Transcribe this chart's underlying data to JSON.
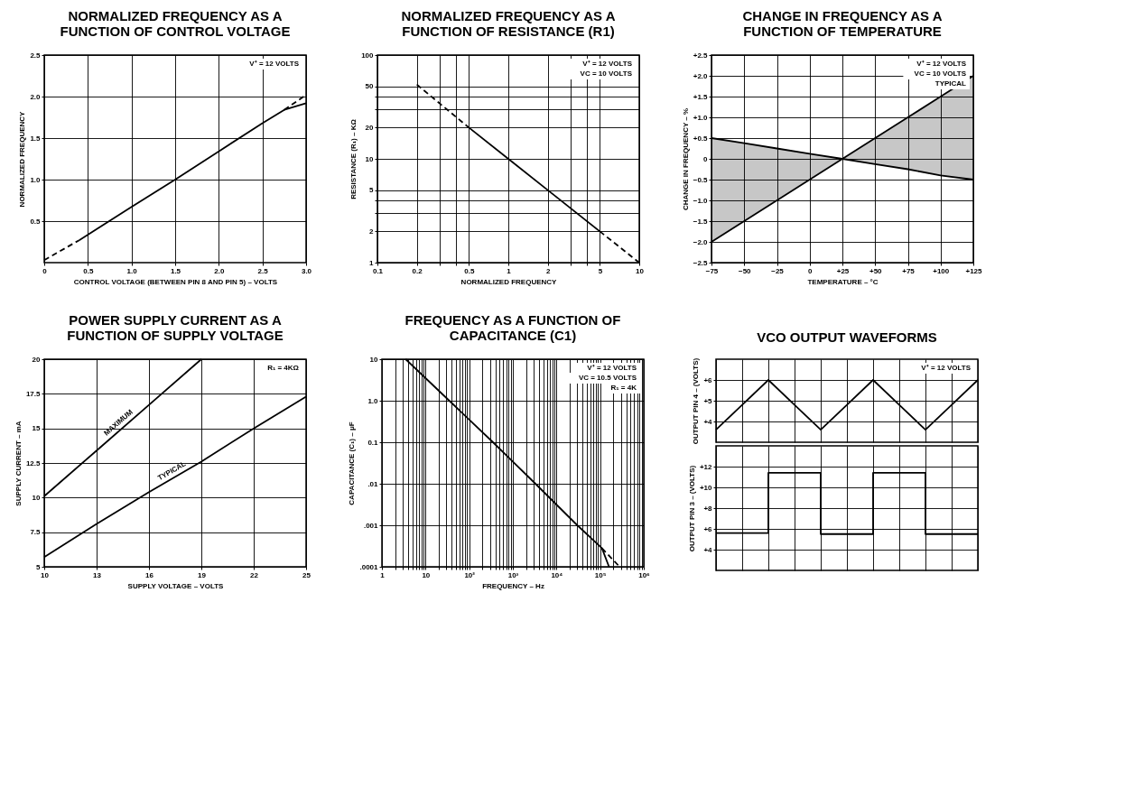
{
  "chart_data": [
    {
      "type": "line",
      "title": "NORMALIZED FREQUENCY AS A FUNCTION OF CONTROL VOLTAGE",
      "xlabel": "CONTROL VOLTAGE (BETWEEN PIN 8 AND PIN 5) – VOLTS",
      "ylabel": "NORMALIZED FREQUENCY",
      "xlim": [
        0,
        3
      ],
      "ylim": [
        0,
        2.5
      ],
      "xticks": [
        0,
        0.5,
        {
          "value": 1,
          "label": "1.0"
        },
        1.5,
        {
          "value": 2,
          "label": "2.0"
        },
        2.5,
        {
          "value": 3,
          "label": "3.0"
        }
      ],
      "yticks": [
        0.5,
        {
          "value": 1,
          "label": "1.0"
        },
        1.5,
        {
          "value": 2,
          "label": "2.0"
        },
        2.5
      ],
      "grid": true,
      "annotations": [
        "V⁺ = 12 VOLTS"
      ],
      "series": [
        {
          "color": "#000000",
          "x": [
            0.4,
            1,
            1.5,
            2,
            2.5,
            2.75,
            3
          ],
          "values": [
            0.27,
            0.67,
            1.0,
            1.34,
            1.68,
            1.84,
            1.92
          ]
        },
        {
          "color": "#000000",
          "line_style": "dashed",
          "x": [
            0,
            0.4
          ],
          "values": [
            0.03,
            0.27
          ]
        },
        {
          "color": "#000000",
          "line_style": "dashed",
          "x": [
            2.75,
            3
          ],
          "values": [
            1.84,
            2.02
          ]
        }
      ]
    },
    {
      "type": "line",
      "title": "NORMALIZED FREQUENCY AS A FUNCTION OF RESISTANCE (R1)",
      "xlabel": "NORMALIZED FREQUENCY",
      "ylabel": "RESISTANCE (R₁) – KΩ",
      "log": "xy",
      "xlim": [
        0.1,
        10
      ],
      "ylim": [
        1,
        100
      ],
      "xticks": [
        0.1,
        0.2,
        {
          "value": 0.3,
          "label": null
        },
        {
          "value": 0.4,
          "label": null
        },
        0.5,
        1,
        2,
        {
          "value": 3,
          "label": null
        },
        {
          "value": 4,
          "label": null
        },
        5,
        10
      ],
      "yticks": [
        1,
        2,
        {
          "value": 3,
          "label": null
        },
        {
          "value": 4,
          "label": null
        },
        5,
        10,
        20,
        {
          "value": 30,
          "label": null
        },
        {
          "value": 40,
          "label": null
        },
        50,
        100
      ],
      "grid": true,
      "annotations": [
        "V⁺ = 12 VOLTS",
        "VC = 10 VOLTS"
      ],
      "series": [
        {
          "color": "#000000",
          "x": [
            0.5,
            1,
            2,
            5
          ],
          "values": [
            20,
            10,
            5,
            2
          ]
        },
        {
          "color": "#000000",
          "line_style": "dashed",
          "x": [
            0.2,
            0.5
          ],
          "values": [
            52,
            20
          ]
        },
        {
          "color": "#000000",
          "line_style": "dashed",
          "x": [
            5,
            10
          ],
          "values": [
            2,
            1
          ]
        }
      ]
    },
    {
      "type": "line",
      "title": "CHANGE IN FREQUENCY AS A FUNCTION OF TEMPERATURE",
      "xlabel": "TEMPERATURE – °C",
      "ylabel": "CHANGE IN FREQUENCY – %",
      "xlim": [
        -75,
        125
      ],
      "ylim": [
        -2.5,
        2.5
      ],
      "xticks": [
        {
          "value": -75,
          "label": "−75"
        },
        {
          "value": -50,
          "label": "−50"
        },
        {
          "value": -25,
          "label": "−25"
        },
        0,
        {
          "value": 25,
          "label": "+25"
        },
        {
          "value": 50,
          "label": "+50"
        },
        {
          "value": 75,
          "label": "+75"
        },
        {
          "value": 100,
          "label": "+100"
        },
        {
          "value": 125,
          "label": "+125"
        }
      ],
      "yticks": [
        {
          "value": -2.5,
          "label": "−2.5"
        },
        {
          "value": -2,
          "label": "−2.0"
        },
        {
          "value": -1.5,
          "label": "−1.5"
        },
        {
          "value": -1,
          "label": "−1.0"
        },
        {
          "value": -0.5,
          "label": "−0.5"
        },
        0,
        {
          "value": 0.5,
          "label": "+0.5"
        },
        {
          "value": 1,
          "label": "+1.0"
        },
        {
          "value": 1.5,
          "label": "+1.5"
        },
        {
          "value": 2,
          "label": "+2.0"
        },
        {
          "value": 2.5,
          "label": "+2.5"
        }
      ],
      "grid": true,
      "annotations": [
        "V⁺ = 12 VOLTS",
        "VC = 10 VOLTS",
        "TYPICAL"
      ],
      "series": [
        {
          "color": "#000000",
          "x": [
            -75,
            -50,
            -25,
            0,
            25,
            50,
            75,
            100,
            125
          ],
          "values": [
            -2,
            -1.5,
            -1,
            -0.5,
            0,
            0.5,
            1,
            1.5,
            2
          ],
          "lower": [
            -2,
            -1.5,
            -1,
            -0.5,
            0,
            -0.13,
            -0.25,
            -0.4,
            -0.5
          ],
          "upper": [
            0.5,
            0.38,
            0.25,
            0.12,
            0,
            0.5,
            1,
            1.5,
            2
          ]
        },
        {
          "color": "#000000",
          "x": [
            -75,
            -50,
            -25,
            0,
            25,
            50,
            75,
            100,
            125
          ],
          "values": [
            0.5,
            0.38,
            0.25,
            0.12,
            0,
            -0.13,
            -0.25,
            -0.4,
            -0.5
          ]
        }
      ]
    },
    {
      "type": "line",
      "title": "POWER SUPPLY CURRENT AS A FUNCTION OF SUPPLY VOLTAGE",
      "xlabel": "SUPPLY VOLTAGE – VOLTS",
      "ylabel": "SUPPLY CURRENT – mA",
      "xlim": [
        10,
        25
      ],
      "ylim": [
        5,
        20
      ],
      "xticks": [
        10,
        13,
        16,
        19,
        22,
        25
      ],
      "yticks": [
        5,
        7.5,
        10,
        12.5,
        15,
        17.5,
        20
      ],
      "grid": true,
      "annotations": [
        "R₁ = 4KΩ"
      ],
      "series": [
        {
          "name": "MAXIMUM",
          "color": "#000000",
          "x": [
            10,
            13,
            16,
            19
          ],
          "values": [
            10.1,
            13.4,
            16.7,
            20
          ]
        },
        {
          "name": "TYPICAL",
          "color": "#000000",
          "x": [
            10,
            13,
            16,
            19,
            22,
            25
          ],
          "values": [
            5.7,
            8.1,
            10.4,
            12.6,
            15,
            17.3
          ]
        }
      ]
    },
    {
      "type": "line",
      "title": "FREQUENCY AS A FUNCTION OF CAPACITANCE (C1)",
      "xlabel": "FREQUENCY – Hz",
      "ylabel": "CAPACITANCE (C₁) – μF",
      "log": "xy",
      "xlim": [
        1,
        1000000
      ],
      "ylim": [
        0.0001,
        10
      ],
      "xticks": [
        1,
        {
          "value": 2,
          "label": null
        },
        {
          "value": 3,
          "label": null
        },
        {
          "value": 4,
          "label": null
        },
        {
          "value": 5,
          "label": null
        },
        {
          "value": 6,
          "label": null
        },
        {
          "value": 7,
          "label": null
        },
        {
          "value": 8,
          "label": null
        },
        {
          "value": 9,
          "label": null
        },
        10,
        {
          "value": 20,
          "label": null
        },
        {
          "value": 30,
          "label": null
        },
        {
          "value": 40,
          "label": null
        },
        {
          "value": 50,
          "label": null
        },
        {
          "value": 60,
          "label": null
        },
        {
          "value": 70,
          "label": null
        },
        {
          "value": 80,
          "label": null
        },
        {
          "value": 90,
          "label": null
        },
        {
          "value": 100,
          "label": "10²"
        },
        {
          "value": 200,
          "label": null
        },
        {
          "value": 300,
          "label": null
        },
        {
          "value": 400,
          "label": null
        },
        {
          "value": 500,
          "label": null
        },
        {
          "value": 600,
          "label": null
        },
        {
          "value": 700,
          "label": null
        },
        {
          "value": 800,
          "label": null
        },
        {
          "value": 900,
          "label": null
        },
        {
          "value": 1000,
          "label": "10³"
        },
        {
          "value": 2000,
          "label": null
        },
        {
          "value": 3000,
          "label": null
        },
        {
          "value": 4000,
          "label": null
        },
        {
          "value": 5000,
          "label": null
        },
        {
          "value": 6000,
          "label": null
        },
        {
          "value": 7000,
          "label": null
        },
        {
          "value": 8000,
          "label": null
        },
        {
          "value": 9000,
          "label": null
        },
        {
          "value": 10000,
          "label": "10⁴"
        },
        {
          "value": 20000,
          "label": null
        },
        {
          "value": 30000,
          "label": null
        },
        {
          "value": 40000,
          "label": null
        },
        {
          "value": 50000,
          "label": null
        },
        {
          "value": 60000,
          "label": null
        },
        {
          "value": 70000,
          "label": null
        },
        {
          "value": 80000,
          "label": null
        },
        {
          "value": 90000,
          "label": null
        },
        {
          "value": 100000,
          "label": "10⁵"
        },
        {
          "value": 200000,
          "label": null
        },
        {
          "value": 300000,
          "label": null
        },
        {
          "value": 400000,
          "label": null
        },
        {
          "value": 500000,
          "label": null
        },
        {
          "value": 600000,
          "label": null
        },
        {
          "value": 700000,
          "label": null
        },
        {
          "value": 800000,
          "label": null
        },
        {
          "value": 900000,
          "label": null
        },
        {
          "value": 1000000,
          "label": "10⁶"
        }
      ],
      "yticks": [
        {
          "value": 0.0001,
          "label": ".0001"
        },
        {
          "value": 0.001,
          "label": ".001"
        },
        {
          "value": 0.01,
          "label": ".01"
        },
        0.1,
        {
          "value": 1,
          "label": "1.0"
        },
        10
      ],
      "grid": true,
      "annotations": [
        "V⁺ = 12 VOLTS",
        "VC = 10.5 VOLTS",
        "R₁ = 4K"
      ],
      "series": [
        {
          "color": "#000000",
          "x": [
            3.5,
            35,
            350,
            3300,
            30000,
            110000,
            160000
          ],
          "values": [
            10,
            1,
            0.1,
            0.01,
            0.001,
            0.00028,
            0.0001
          ]
        },
        {
          "color": "#000000",
          "line_style": "dashed",
          "x": [
            110000,
            280000
          ],
          "values": [
            0.00028,
            0.0001
          ]
        }
      ]
    },
    {
      "type": "line",
      "title": "VCO OUTPUT WAVEFORMS",
      "ylabel": "OUTPUT PIN 4 – (VOLTS)",
      "tick_labels": "y",
      "categories": [
        null,
        null,
        null,
        null,
        null,
        null,
        null,
        null,
        null,
        null,
        null
      ],
      "ylim": [
        3,
        7
      ],
      "yticks": [
        {
          "value": 4,
          "label": "+4"
        },
        {
          "value": 5,
          "label": "+5"
        },
        {
          "value": 6,
          "label": "+6"
        }
      ],
      "grid": true,
      "annotations": [
        "V⁺ = 12 VOLTS"
      ],
      "series": [
        {
          "color": "#000000",
          "values": [
            3.6,
            4.8,
            6.0,
            4.8,
            3.6,
            4.8,
            6.0,
            4.8,
            3.6,
            4.8,
            6.0
          ]
        }
      ]
    },
    {
      "type": "step",
      "ylabel": "OUTPUT PIN 3 – (VOLTS)",
      "tick_labels": "y",
      "categories": [
        null,
        null,
        null,
        null,
        null,
        null,
        null,
        null,
        null,
        null,
        null
      ],
      "ylim": [
        2,
        14
      ],
      "yticks": [
        {
          "value": 4,
          "label": "+4"
        },
        {
          "value": 6,
          "label": "+6"
        },
        {
          "value": 8,
          "label": "+8"
        },
        {
          "value": 10,
          "label": "+10"
        },
        {
          "value": 12,
          "label": "+12"
        }
      ],
      "grid": true,
      "series": [
        {
          "color": "#000000",
          "values": [
            5.6,
            5.6,
            11.4,
            11.4,
            5.5,
            5.5,
            11.4,
            11.4,
            5.5,
            5.5,
            5.5
          ]
        }
      ]
    }
  ]
}
